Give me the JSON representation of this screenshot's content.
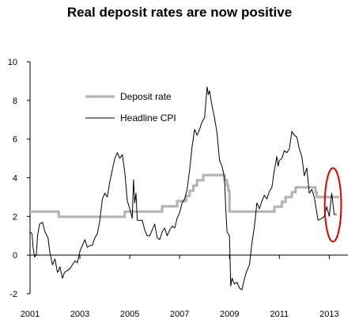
{
  "chart_data": {
    "type": "line",
    "title": "Real deposit rates are now positive",
    "xlabel": "",
    "ylabel": "",
    "xlim": [
      2001.0,
      2013.75
    ],
    "ylim": [
      -2,
      10
    ],
    "x_ticks": [
      "2001",
      "2003",
      "2005",
      "2007",
      "2009",
      "2011",
      "2013"
    ],
    "y_ticks": [
      "-2",
      "0",
      "2",
      "4",
      "6",
      "8",
      "10"
    ],
    "legend_position": "top-left",
    "grid": false,
    "series": [
      {
        "name": "Deposit rate",
        "color": "#b4b4b4",
        "style": "step",
        "points": [
          [
            2001.0,
            2.25
          ],
          [
            2002.15,
            2.25
          ],
          [
            2002.15,
            1.98
          ],
          [
            2004.8,
            1.98
          ],
          [
            2004.8,
            2.25
          ],
          [
            2006.3,
            2.25
          ],
          [
            2006.3,
            2.52
          ],
          [
            2006.9,
            2.52
          ],
          [
            2006.9,
            2.79
          ],
          [
            2007.25,
            2.79
          ],
          [
            2007.25,
            3.06
          ],
          [
            2007.4,
            3.06
          ],
          [
            2007.4,
            3.33
          ],
          [
            2007.55,
            3.33
          ],
          [
            2007.55,
            3.6
          ],
          [
            2007.7,
            3.6
          ],
          [
            2007.7,
            3.87
          ],
          [
            2007.95,
            3.87
          ],
          [
            2007.95,
            4.14
          ],
          [
            2008.8,
            4.14
          ],
          [
            2008.8,
            3.87
          ],
          [
            2008.9,
            3.87
          ],
          [
            2008.9,
            3.6
          ],
          [
            2008.95,
            3.6
          ],
          [
            2008.95,
            3.33
          ],
          [
            2009.0,
            3.33
          ],
          [
            2009.0,
            2.25
          ],
          [
            2010.8,
            2.25
          ],
          [
            2010.8,
            2.5
          ],
          [
            2011.1,
            2.5
          ],
          [
            2011.1,
            2.75
          ],
          [
            2011.25,
            2.75
          ],
          [
            2011.25,
            3.0
          ],
          [
            2011.5,
            3.0
          ],
          [
            2011.5,
            3.25
          ],
          [
            2011.65,
            3.25
          ],
          [
            2011.65,
            3.5
          ],
          [
            2012.45,
            3.5
          ],
          [
            2012.45,
            3.25
          ],
          [
            2012.5,
            3.25
          ],
          [
            2012.5,
            3.0
          ],
          [
            2013.4,
            3.0
          ]
        ]
      },
      {
        "name": "Headline CPI",
        "color": "#000000",
        "style": "line",
        "points": [
          [
            2001.0,
            1.2
          ],
          [
            2001.08,
            1.1
          ],
          [
            2001.12,
            0.4
          ],
          [
            2001.18,
            -0.1
          ],
          [
            2001.25,
            0.0
          ],
          [
            2001.3,
            1.0
          ],
          [
            2001.38,
            1.6
          ],
          [
            2001.5,
            1.7
          ],
          [
            2001.6,
            1.2
          ],
          [
            2001.72,
            0.9
          ],
          [
            2001.8,
            0.1
          ],
          [
            2001.9,
            -0.5
          ],
          [
            2002.0,
            -0.2
          ],
          [
            2002.1,
            -0.9
          ],
          [
            2002.15,
            -0.8
          ],
          [
            2002.2,
            -0.6
          ],
          [
            2002.3,
            -1.2
          ],
          [
            2002.38,
            -0.9
          ],
          [
            2002.5,
            -0.8
          ],
          [
            2002.6,
            -0.7
          ],
          [
            2002.7,
            -0.5
          ],
          [
            2002.8,
            -0.3
          ],
          [
            2002.9,
            -0.4
          ],
          [
            2003.0,
            0.2
          ],
          [
            2003.1,
            0.5
          ],
          [
            2003.2,
            0.8
          ],
          [
            2003.3,
            0.4
          ],
          [
            2003.4,
            0.5
          ],
          [
            2003.5,
            0.5
          ],
          [
            2003.6,
            0.9
          ],
          [
            2003.7,
            1.1
          ],
          [
            2003.8,
            1.8
          ],
          [
            2003.9,
            2.9
          ],
          [
            2004.0,
            3.2
          ],
          [
            2004.1,
            3.0
          ],
          [
            2004.2,
            3.8
          ],
          [
            2004.3,
            4.4
          ],
          [
            2004.4,
            5.0
          ],
          [
            2004.5,
            5.3
          ],
          [
            2004.6,
            5.0
          ],
          [
            2004.7,
            5.2
          ],
          [
            2004.8,
            4.3
          ],
          [
            2004.9,
            2.8
          ],
          [
            2005.0,
            2.4
          ],
          [
            2005.1,
            1.9
          ],
          [
            2005.15,
            3.9
          ],
          [
            2005.2,
            2.7
          ],
          [
            2005.25,
            3.2
          ],
          [
            2005.3,
            1.8
          ],
          [
            2005.4,
            1.8
          ],
          [
            2005.5,
            1.8
          ],
          [
            2005.6,
            1.3
          ],
          [
            2005.7,
            1.0
          ],
          [
            2005.8,
            1.0
          ],
          [
            2005.9,
            1.3
          ],
          [
            2006.0,
            1.6
          ],
          [
            2006.1,
            0.9
          ],
          [
            2006.2,
            0.8
          ],
          [
            2006.3,
            1.2
          ],
          [
            2006.4,
            1.4
          ],
          [
            2006.5,
            1.0
          ],
          [
            2006.6,
            1.3
          ],
          [
            2006.7,
            1.5
          ],
          [
            2006.8,
            1.4
          ],
          [
            2006.9,
            1.9
          ],
          [
            2007.0,
            2.2
          ],
          [
            2007.1,
            2.7
          ],
          [
            2007.2,
            2.9
          ],
          [
            2007.3,
            3.4
          ],
          [
            2007.4,
            4.4
          ],
          [
            2007.5,
            5.6
          ],
          [
            2007.6,
            6.5
          ],
          [
            2007.7,
            6.2
          ],
          [
            2007.8,
            6.5
          ],
          [
            2007.9,
            6.9
          ],
          [
            2008.0,
            7.1
          ],
          [
            2008.1,
            8.7
          ],
          [
            2008.15,
            8.3
          ],
          [
            2008.2,
            8.5
          ],
          [
            2008.3,
            7.7
          ],
          [
            2008.4,
            7.1
          ],
          [
            2008.5,
            6.3
          ],
          [
            2008.6,
            4.9
          ],
          [
            2008.7,
            4.6
          ],
          [
            2008.8,
            4.0
          ],
          [
            2008.85,
            2.4
          ],
          [
            2008.9,
            1.2
          ],
          [
            2009.0,
            1.0
          ],
          [
            2009.05,
            -1.6
          ],
          [
            2009.1,
            -1.2
          ],
          [
            2009.2,
            -1.5
          ],
          [
            2009.3,
            -1.4
          ],
          [
            2009.4,
            -1.7
          ],
          [
            2009.5,
            -1.8
          ],
          [
            2009.6,
            -1.2
          ],
          [
            2009.7,
            -0.8
          ],
          [
            2009.8,
            -0.5
          ],
          [
            2009.9,
            0.6
          ],
          [
            2010.0,
            1.5
          ],
          [
            2010.1,
            2.7
          ],
          [
            2010.2,
            2.4
          ],
          [
            2010.3,
            2.8
          ],
          [
            2010.4,
            3.1
          ],
          [
            2010.5,
            2.9
          ],
          [
            2010.6,
            3.3
          ],
          [
            2010.7,
            3.5
          ],
          [
            2010.8,
            4.4
          ],
          [
            2010.9,
            5.1
          ],
          [
            2010.95,
            4.6
          ],
          [
            2011.0,
            4.9
          ],
          [
            2011.1,
            5.0
          ],
          [
            2011.2,
            5.4
          ],
          [
            2011.3,
            5.3
          ],
          [
            2011.4,
            5.5
          ],
          [
            2011.5,
            6.4
          ],
          [
            2011.6,
            6.2
          ],
          [
            2011.7,
            6.1
          ],
          [
            2011.8,
            5.5
          ],
          [
            2011.9,
            5.1
          ],
          [
            2012.0,
            4.1
          ],
          [
            2012.1,
            4.5
          ],
          [
            2012.2,
            3.2
          ],
          [
            2012.3,
            3.4
          ],
          [
            2012.4,
            3.0
          ],
          [
            2012.5,
            2.2
          ],
          [
            2012.55,
            1.8
          ],
          [
            2012.7,
            1.9
          ],
          [
            2012.8,
            2.0
          ],
          [
            2012.9,
            2.5
          ],
          [
            2013.0,
            2.0
          ],
          [
            2013.1,
            3.2
          ],
          [
            2013.2,
            2.1
          ],
          [
            2013.3,
            2.1
          ]
        ]
      }
    ],
    "annotation": {
      "type": "ellipse",
      "color": "#e00000",
      "center": [
        2013.15,
        2.6
      ],
      "radius_x": 0.33,
      "radius_y": 1.9
    }
  }
}
